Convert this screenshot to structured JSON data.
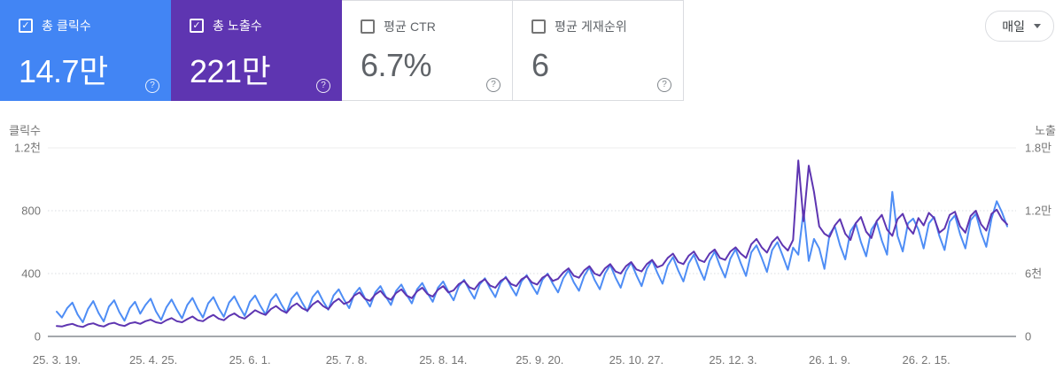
{
  "cards": [
    {
      "id": "total-clicks",
      "label": "총 클릭수",
      "value": "14.7만",
      "checked": true,
      "bg": "#4285f4"
    },
    {
      "id": "total-impressions",
      "label": "총 노출수",
      "value": "221만",
      "checked": true,
      "bg": "#5e35b1"
    },
    {
      "id": "avg-ctr",
      "label": "평균 CTR",
      "value": "6.7%",
      "checked": false,
      "bg": "#ffffff"
    },
    {
      "id": "avg-position",
      "label": "평균 게재순위",
      "value": "6",
      "checked": false,
      "bg": "#ffffff"
    }
  ],
  "icons": {
    "check": "✓",
    "help": "?"
  },
  "period_selector": {
    "label": "매일"
  },
  "chart_data": {
    "type": "line",
    "x_tick_labels": [
      "25. 3. 19.",
      "25. 4. 25.",
      "25. 6. 1.",
      "25. 7. 8.",
      "25. 8. 14.",
      "25. 9. 20.",
      "25. 10. 27.",
      "25. 12. 3.",
      "26. 1. 9.",
      "26. 2. 15."
    ],
    "x_tick_days": [
      0,
      37,
      74,
      111,
      148,
      185,
      222,
      259,
      296,
      333
    ],
    "days_total": 364,
    "grid": "horizontal",
    "left_axis": {
      "title": "클릭수",
      "ticks": [
        "1.2천",
        "800",
        "400",
        "0"
      ],
      "tick_values": [
        1200,
        800,
        400,
        0
      ],
      "max": 1200
    },
    "right_axis": {
      "title": "노출",
      "ticks": [
        "1.8만",
        "1.2만",
        "6천",
        "0"
      ],
      "tick_values": [
        18000,
        12000,
        6000,
        0
      ],
      "max": 18000
    },
    "series": [
      {
        "name": "총 클릭수",
        "axis": "left",
        "color": "#4e8df5",
        "day_step": 2,
        "values": [
          158,
          120,
          180,
          215,
          140,
          90,
          175,
          225,
          150,
          95,
          190,
          230,
          155,
          100,
          180,
          220,
          145,
          200,
          240,
          160,
          105,
          185,
          235,
          170,
          115,
          200,
          245,
          175,
          120,
          210,
          250,
          180,
          125,
          215,
          255,
          190,
          130,
          220,
          260,
          195,
          140,
          230,
          270,
          205,
          150,
          240,
          280,
          215,
          160,
          250,
          290,
          225,
          170,
          260,
          300,
          235,
          180,
          270,
          310,
          245,
          190,
          280,
          320,
          255,
          200,
          290,
          330,
          265,
          210,
          300,
          340,
          275,
          220,
          310,
          350,
          285,
          230,
          320,
          360,
          295,
          240,
          330,
          370,
          305,
          250,
          340,
          380,
          315,
          260,
          350,
          390,
          325,
          270,
          360,
          400,
          335,
          280,
          370,
          420,
          345,
          290,
          385,
          440,
          360,
          300,
          400,
          455,
          375,
          310,
          415,
          470,
          390,
          320,
          430,
          485,
          405,
          335,
          450,
          505,
          420,
          350,
          465,
          520,
          435,
          360,
          480,
          540,
          450,
          375,
          495,
          555,
          465,
          385,
          535,
          580,
          500,
          410,
          550,
          600,
          515,
          425,
          565,
          520,
          800,
          480,
          620,
          560,
          430,
          650,
          700,
          580,
          490,
          670,
          720,
          600,
          510,
          680,
          730,
          610,
          520,
          920,
          640,
          540,
          720,
          750,
          680,
          560,
          720,
          760,
          640,
          550,
          730,
          770,
          650,
          560,
          740,
          780,
          660,
          570,
          750,
          860,
          790,
          700
        ]
      },
      {
        "name": "총 노출수",
        "axis": "right",
        "color": "#5e35b1",
        "day_step": 2,
        "values": [
          1000,
          950,
          1100,
          1200,
          1000,
          900,
          1150,
          1250,
          1050,
          950,
          1200,
          1300,
          1100,
          1000,
          1250,
          1350,
          1200,
          1450,
          1600,
          1350,
          1250,
          1550,
          1750,
          1450,
          1350,
          1650,
          1900,
          1550,
          1450,
          1800,
          2050,
          1700,
          1550,
          1950,
          2200,
          1850,
          1700,
          2100,
          2500,
          2250,
          2050,
          2600,
          2900,
          2500,
          2250,
          2850,
          3150,
          2700,
          2450,
          3050,
          3400,
          2900,
          2600,
          3250,
          3600,
          3100,
          3300,
          3900,
          4200,
          3600,
          3400,
          4000,
          4350,
          3750,
          3500,
          4150,
          4500,
          3900,
          3650,
          4300,
          4650,
          4050,
          3800,
          4450,
          4800,
          4200,
          4400,
          5000,
          5300,
          4700,
          4500,
          5150,
          5450,
          4850,
          4650,
          5300,
          5600,
          5000,
          4800,
          5450,
          5750,
          5150,
          4950,
          5600,
          5900,
          5300,
          5500,
          6100,
          6500,
          5800,
          5600,
          6300,
          6700,
          6000,
          5800,
          6500,
          6900,
          6200,
          6000,
          6700,
          7100,
          6400,
          6200,
          6900,
          7300,
          6600,
          6800,
          7500,
          7900,
          7100,
          6900,
          7700,
          8100,
          7300,
          7100,
          7900,
          8300,
          7500,
          7300,
          8100,
          8500,
          7900,
          7500,
          8800,
          9300,
          8500,
          8000,
          9000,
          9500,
          8700,
          8200,
          9200,
          16800,
          11000,
          16300,
          13800,
          10500,
          9800,
          9500,
          10600,
          11200,
          9800,
          9200,
          10800,
          11400,
          10000,
          9400,
          11000,
          11600,
          10200,
          9600,
          11200,
          11700,
          10400,
          9800,
          11300,
          10600,
          11800,
          11300,
          9900,
          10300,
          11600,
          11900,
          10500,
          9900,
          11500,
          12000,
          10700,
          10100,
          11700,
          12100,
          11200,
          10700
        ]
      }
    ]
  }
}
